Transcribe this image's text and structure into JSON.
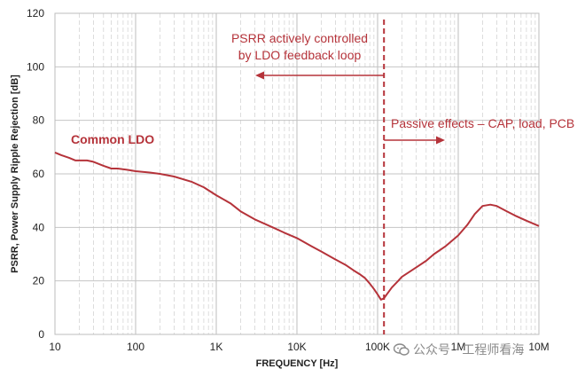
{
  "chart_data": {
    "type": "line",
    "title": "",
    "xlabel": "FREQUENCY [Hz]",
    "ylabel": "PSRR, Power Supply Ripple Rejection [dB]",
    "xscale": "log",
    "xlim": [
      10,
      10000000
    ],
    "ylim": [
      0,
      120
    ],
    "x_ticks": [
      {
        "value": 10,
        "label": "10"
      },
      {
        "value": 100,
        "label": "100"
      },
      {
        "value": 1000,
        "label": "1K"
      },
      {
        "value": 10000,
        "label": "10K"
      },
      {
        "value": 100000,
        "label": "100K"
      },
      {
        "value": 1000000,
        "label": "1M"
      },
      {
        "value": 10000000,
        "label": "10M"
      }
    ],
    "y_ticks": [
      0,
      20,
      40,
      60,
      80,
      100,
      120
    ],
    "grid": true,
    "series": [
      {
        "name": "Common LDO",
        "color": "#b5333a",
        "x": [
          10,
          12,
          15,
          18,
          20,
          25,
          30,
          40,
          50,
          60,
          80,
          100,
          150,
          200,
          300,
          500,
          700,
          1000,
          1500,
          2000,
          3000,
          5000,
          7000,
          10000,
          15000,
          20000,
          30000,
          40000,
          50000,
          60000,
          70000,
          80000,
          90000,
          100000,
          110000,
          120000,
          130000,
          150000,
          180000,
          200000,
          300000,
          400000,
          500000,
          700000,
          1000000,
          1300000,
          1600000,
          2000000,
          2500000,
          3000000,
          4000000,
          5000000,
          7000000,
          10000000
        ],
        "values": [
          68,
          67,
          66,
          65,
          65,
          65,
          64.5,
          63,
          62,
          62,
          61.5,
          61,
          60.5,
          60,
          59,
          57,
          55,
          52,
          49,
          46,
          43,
          40,
          38,
          36,
          33,
          31,
          28,
          26,
          24,
          22.5,
          21,
          19,
          17,
          15,
          13,
          13.5,
          15,
          17.5,
          20,
          21.5,
          25,
          27.5,
          30,
          33,
          37,
          41,
          45,
          48,
          48.5,
          48,
          46,
          44.5,
          42.5,
          40.5
        ]
      }
    ],
    "annotations": [
      {
        "id": "feedback",
        "lines": [
          "PSRR actively controlled",
          "by LDO feedback loop"
        ],
        "color": "#b5333a"
      },
      {
        "id": "passive",
        "text": "Passive effects – CAP, load, PCB",
        "color": "#b5333a"
      }
    ],
    "marker_line_x": 120000
  },
  "watermark": "公众号 · 工程师看海"
}
